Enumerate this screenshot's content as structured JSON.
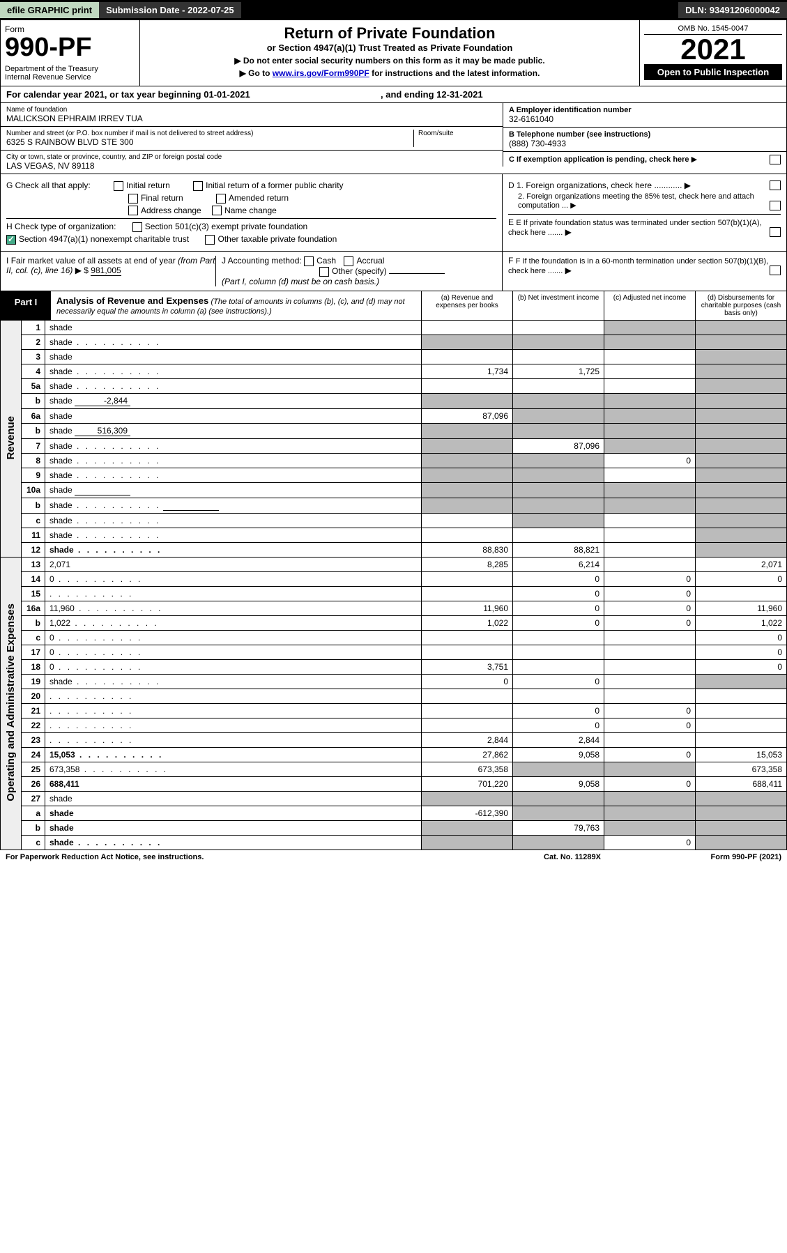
{
  "topbar": {
    "efile": "efile GRAPHIC print",
    "submission": "Submission Date - 2022-07-25",
    "dln": "DLN: 93491206000042"
  },
  "header": {
    "form_word": "Form",
    "form_num": "990-PF",
    "dept": "Department of the Treasury\nInternal Revenue Service",
    "title": "Return of Private Foundation",
    "subtitle": "or Section 4947(a)(1) Trust Treated as Private Foundation",
    "note1": "▶ Do not enter social security numbers on this form as it may be made public.",
    "note2_pre": "▶ Go to ",
    "note2_link": "www.irs.gov/Form990PF",
    "note2_post": " for instructions and the latest information.",
    "omb": "OMB No. 1545-0047",
    "year": "2021",
    "open": "Open to Public Inspection"
  },
  "calyear": {
    "pre": "For calendar year 2021, or tax year beginning ",
    "begin": "01-01-2021",
    "mid": ", and ending ",
    "end": "12-31-2021"
  },
  "info": {
    "name_label": "Name of foundation",
    "name": "MALICKSON EPHRAIM IRREV TUA",
    "addr_label": "Number and street (or P.O. box number if mail is not delivered to street address)",
    "addr": "6325 S RAINBOW BLVD STE 300",
    "room_label": "Room/suite",
    "city_label": "City or town, state or province, country, and ZIP or foreign postal code",
    "city": "LAS VEGAS, NV  89118",
    "ein_label": "A Employer identification number",
    "ein": "32-6161040",
    "tel_label": "B Telephone number (see instructions)",
    "tel": "(888) 730-4933",
    "c_label": "C If exemption application is pending, check here"
  },
  "checks": {
    "g_lead": "G Check all that apply:",
    "g1": "Initial return",
    "g2": "Initial return of a former public charity",
    "g3": "Final return",
    "g4": "Amended return",
    "g5": "Address change",
    "g6": "Name change",
    "h_lead": "H Check type of organization:",
    "h1": "Section 501(c)(3) exempt private foundation",
    "h2": "Section 4947(a)(1) nonexempt charitable trust",
    "h3": "Other taxable private foundation",
    "i_lead": "I Fair market value of all assets at end of year (from Part II, col. (c), line 16) ▶ $",
    "i_val": "981,005",
    "j_lead": "J Accounting method:",
    "j1": "Cash",
    "j2": "Accrual",
    "j3": "Other (specify)",
    "j_note": "(Part I, column (d) must be on cash basis.)",
    "d1": "D 1. Foreign organizations, check here ............",
    "d2": "2. Foreign organizations meeting the 85% test, check here and attach computation ...",
    "e": "E If private foundation status was terminated under section 507(b)(1)(A), check here .......",
    "f": "F If the foundation is in a 60-month termination under section 507(b)(1)(B), check here ......."
  },
  "part1": {
    "label": "Part I",
    "title": "Analysis of Revenue and Expenses",
    "note": "(The total of amounts in columns (b), (c), and (d) may not necessarily equal the amounts in column (a) (see instructions).)",
    "cols": {
      "a": "(a) Revenue and expenses per books",
      "b": "(b) Net investment income",
      "c": "(c) Adjusted net income",
      "d": "(d) Disbursements for charitable purposes (cash basis only)"
    }
  },
  "side_labels": {
    "revenue": "Revenue",
    "expenses": "Operating and Administrative Expenses"
  },
  "rows": [
    {
      "n": "1",
      "d": "shade",
      "a": "",
      "b": "",
      "c": "shade"
    },
    {
      "n": "2",
      "d": "shade",
      "dots": true,
      "a": "shade",
      "b": "shade",
      "c": "shade",
      "bold_not": true
    },
    {
      "n": "3",
      "d": "shade",
      "a": "",
      "b": "",
      "c": ""
    },
    {
      "n": "4",
      "d": "shade",
      "dots": true,
      "a": "1,734",
      "b": "1,725",
      "c": ""
    },
    {
      "n": "5a",
      "d": "shade",
      "dots": true,
      "a": "",
      "b": "",
      "c": ""
    },
    {
      "n": "b",
      "d": "shade",
      "inline_val": "-2,844",
      "a": "shade",
      "b": "shade",
      "c": "shade"
    },
    {
      "n": "6a",
      "d": "shade",
      "a": "87,096",
      "b": "shade",
      "c": "shade"
    },
    {
      "n": "b",
      "d": "shade",
      "inline_val": "516,309",
      "a": "shade",
      "b": "shade",
      "c": "shade"
    },
    {
      "n": "7",
      "d": "shade",
      "dots": true,
      "a": "shade",
      "b": "87,096",
      "c": "shade"
    },
    {
      "n": "8",
      "d": "shade",
      "dots": true,
      "a": "shade",
      "b": "shade",
      "c": "0"
    },
    {
      "n": "9",
      "d": "shade",
      "dots": true,
      "a": "shade",
      "b": "shade",
      "c": ""
    },
    {
      "n": "10a",
      "d": "shade",
      "inline_box": true,
      "a": "shade",
      "b": "shade",
      "c": "shade"
    },
    {
      "n": "b",
      "d": "shade",
      "dots": true,
      "inline_box": true,
      "a": "shade",
      "b": "shade",
      "c": "shade"
    },
    {
      "n": "c",
      "d": "shade",
      "dots": true,
      "a": "",
      "b": "shade",
      "c": ""
    },
    {
      "n": "11",
      "d": "shade",
      "dots": true,
      "a": "",
      "b": "",
      "c": ""
    },
    {
      "n": "12",
      "d": "shade",
      "dots": true,
      "bold": true,
      "a": "88,830",
      "b": "88,821",
      "c": ""
    },
    {
      "n": "13",
      "d": "2,071",
      "a": "8,285",
      "b": "6,214",
      "c": ""
    },
    {
      "n": "14",
      "d": "0",
      "dots": true,
      "a": "",
      "b": "0",
      "c": "0"
    },
    {
      "n": "15",
      "d": "",
      "dots": true,
      "a": "",
      "b": "0",
      "c": "0"
    },
    {
      "n": "16a",
      "d": "11,960",
      "dots": true,
      "a": "11,960",
      "b": "0",
      "c": "0"
    },
    {
      "n": "b",
      "d": "1,022",
      "dots": true,
      "a": "1,022",
      "b": "0",
      "c": "0"
    },
    {
      "n": "c",
      "d": "0",
      "dots": true,
      "a": "",
      "b": "",
      "c": ""
    },
    {
      "n": "17",
      "d": "0",
      "dots": true,
      "a": "",
      "b": "",
      "c": ""
    },
    {
      "n": "18",
      "d": "0",
      "dots": true,
      "a": "3,751",
      "b": "",
      "c": ""
    },
    {
      "n": "19",
      "d": "shade",
      "dots": true,
      "a": "0",
      "b": "0",
      "c": ""
    },
    {
      "n": "20",
      "d": "",
      "dots": true,
      "a": "",
      "b": "",
      "c": ""
    },
    {
      "n": "21",
      "d": "",
      "dots": true,
      "a": "",
      "b": "0",
      "c": "0"
    },
    {
      "n": "22",
      "d": "",
      "dots": true,
      "a": "",
      "b": "0",
      "c": "0"
    },
    {
      "n": "23",
      "d": "",
      "dots": true,
      "a": "2,844",
      "b": "2,844",
      "c": ""
    },
    {
      "n": "24",
      "d": "15,053",
      "dots": true,
      "bold": true,
      "a": "27,862",
      "b": "9,058",
      "c": "0"
    },
    {
      "n": "25",
      "d": "673,358",
      "dots": true,
      "a": "673,358",
      "b": "shade",
      "c": "shade"
    },
    {
      "n": "26",
      "d": "688,411",
      "bold": true,
      "a": "701,220",
      "b": "9,058",
      "c": "0"
    },
    {
      "n": "27",
      "d": "shade",
      "a": "shade",
      "b": "shade",
      "c": "shade"
    },
    {
      "n": "a",
      "d": "shade",
      "bold": true,
      "a": "-612,390",
      "b": "shade",
      "c": "shade"
    },
    {
      "n": "b",
      "d": "shade",
      "bold": true,
      "a": "shade",
      "b": "79,763",
      "c": "shade"
    },
    {
      "n": "c",
      "d": "shade",
      "dots": true,
      "bold": true,
      "a": "shade",
      "b": "shade",
      "c": "0"
    }
  ],
  "footer": {
    "left": "For Paperwork Reduction Act Notice, see instructions.",
    "mid": "Cat. No. 11289X",
    "right": "Form 990-PF (2021)"
  },
  "colors": {
    "shade": "#bbbbbb",
    "topbar_green": "#c0d8c0",
    "link": "#0000cc"
  }
}
